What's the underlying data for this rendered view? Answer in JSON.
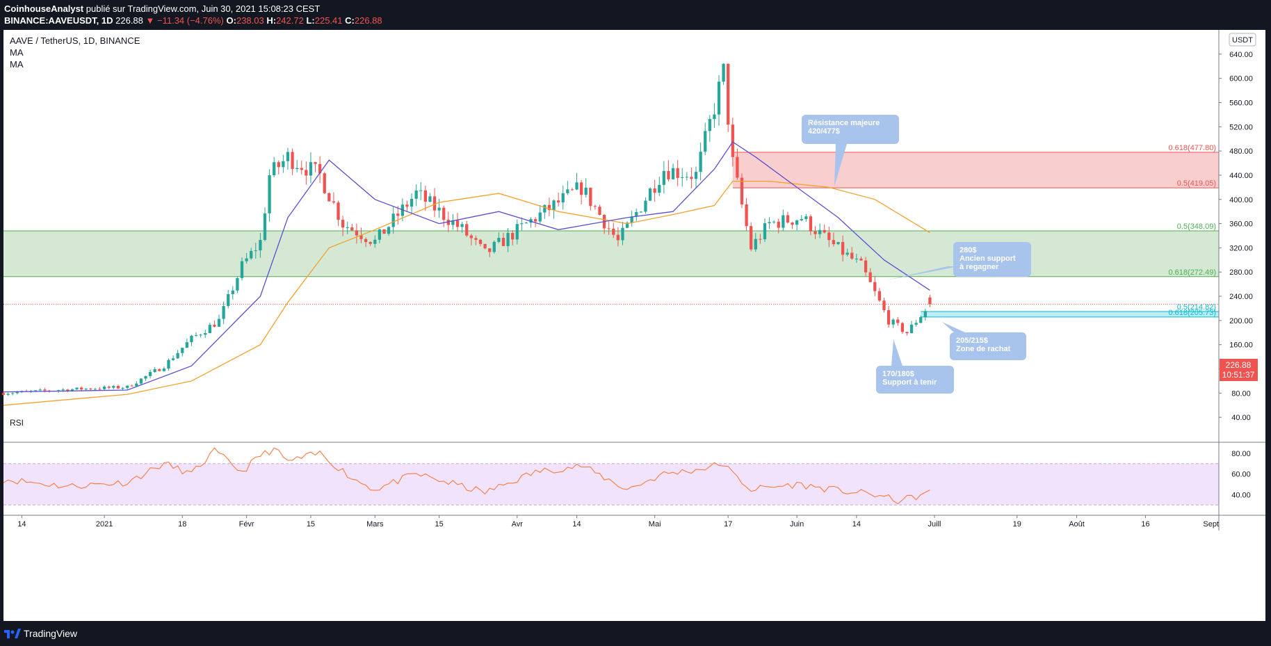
{
  "header": {
    "author": "CoinhouseAnalyst",
    "published": "publié sur TradingView.com, Juin 30, 2021 15:08:23 CEST",
    "symbol": "BINANCE:AAVEUSDT, 1D",
    "price": "226.88",
    "change": "▼ −11.34 (−4.76%)",
    "o_label": "O:",
    "o_val": "238.03",
    "h_label": "H:",
    "h_val": "242.72",
    "l_label": "L:",
    "l_val": "225.41",
    "c_label": "C:",
    "c_val": "226.88"
  },
  "legend": {
    "title": "AAVE / TetherUS, 1D, BINANCE",
    "ma1": "MA",
    "ma2": "MA",
    "currency": "USDT",
    "rsi": "RSI"
  },
  "price_tag": {
    "value": "226.88",
    "timer": "10:51:37"
  },
  "footer": {
    "brand": "TradingView"
  },
  "colors": {
    "up": "#26a69a",
    "down": "#ef5350",
    "ma_fast": "#5b4fcf",
    "ma_slow": "#f5a12a",
    "rsi": "#f57c42",
    "resistance_zone": "#f8c9c9",
    "support_zone": "#cfe6cf",
    "buy_zone": "#b9eaf6",
    "callout": "#a8c4ec"
  },
  "chart_data": [
    {
      "type": "candlestick",
      "title": "AAVE / TetherUS, 1D, BINANCE",
      "ylim": [
        0,
        680
      ],
      "yticks": [
        40,
        80,
        120,
        160,
        200,
        240,
        280,
        320,
        360,
        400,
        440,
        480,
        520,
        560,
        600,
        640
      ],
      "xticks": [
        "14",
        "2021",
        "18",
        "Févr",
        "15",
        "Mars",
        "15",
        "Avr",
        "14",
        "Mai",
        "17",
        "Juin",
        "14",
        "Juill",
        "19",
        "Août",
        "16",
        "Sept"
      ],
      "x_range": [
        "2020-12-10",
        "2021-09-01"
      ],
      "candle_anchors": {
        "dates": [
          "2020-12-10",
          "2020-12-24",
          "2021-01-06",
          "2021-01-14",
          "2021-01-20",
          "2021-01-26",
          "2021-01-31",
          "2021-02-04",
          "2021-02-06",
          "2021-02-10",
          "2021-02-17",
          "2021-02-22",
          "2021-03-01",
          "2021-03-10",
          "2021-03-20",
          "2021-03-25",
          "2021-04-05",
          "2021-04-15",
          "2021-04-23",
          "2021-05-03",
          "2021-05-10",
          "2021-05-16",
          "2021-05-18",
          "2021-05-20",
          "2021-05-22",
          "2021-05-26",
          "2021-06-02",
          "2021-06-08",
          "2021-06-15",
          "2021-06-21",
          "2021-06-25",
          "2021-06-30"
        ],
        "close": [
          80,
          86,
          90,
          125,
          170,
          200,
          290,
          330,
          440,
          470,
          440,
          360,
          330,
          410,
          350,
          310,
          370,
          420,
          330,
          450,
          440,
          610,
          460,
          390,
          320,
          360,
          370,
          330,
          290,
          200,
          180,
          226.88
        ]
      },
      "ma_fast_anchors": {
        "dates": [
          "2020-12-10",
          "2021-01-06",
          "2021-01-20",
          "2021-02-04",
          "2021-02-10",
          "2021-02-19",
          "2021-03-01",
          "2021-03-15",
          "2021-03-28",
          "2021-04-10",
          "2021-04-25",
          "2021-05-05",
          "2021-05-14",
          "2021-05-18",
          "2021-05-23",
          "2021-06-01",
          "2021-06-10",
          "2021-06-20",
          "2021-06-30"
        ],
        "values": [
          82,
          85,
          125,
          240,
          370,
          465,
          400,
          360,
          380,
          350,
          370,
          380,
          450,
          495,
          470,
          420,
          370,
          300,
          250
        ]
      },
      "ma_slow_anchors": {
        "dates": [
          "2020-12-10",
          "2021-01-06",
          "2021-01-20",
          "2021-02-04",
          "2021-02-10",
          "2021-02-19",
          "2021-03-01",
          "2021-03-15",
          "2021-03-28",
          "2021-04-10",
          "2021-04-25",
          "2021-05-05",
          "2021-05-14",
          "2021-05-18",
          "2021-05-26",
          "2021-06-08",
          "2021-06-18",
          "2021-06-30"
        ],
        "values": [
          60,
          78,
          100,
          160,
          230,
          320,
          350,
          395,
          410,
          380,
          360,
          375,
          390,
          430,
          430,
          420,
          400,
          345
        ]
      },
      "levels": [
        {
          "label": "0.618(477.80)",
          "value": 477.8,
          "color": "#ef5350"
        },
        {
          "label": "0.5(419.05)",
          "value": 419.05,
          "color": "#ef5350"
        },
        {
          "label": "0.5(348.09)",
          "value": 348.09,
          "color": "#4caf50"
        },
        {
          "label": "0.618(272.49)",
          "value": 272.49,
          "color": "#4caf50"
        },
        {
          "label": "0.5(214.82)",
          "value": 214.82,
          "color": "#00bcd4"
        },
        {
          "label": "0.618(205.73)",
          "value": 205.73,
          "color": "#00bcd4"
        }
      ],
      "zones": [
        {
          "name": "resistance",
          "from": 419.05,
          "to": 477.8,
          "start": "2021-05-18"
        },
        {
          "name": "support",
          "from": 272.49,
          "to": 348.09,
          "start": "2020-12-10"
        },
        {
          "name": "buy",
          "from": 205.73,
          "to": 214.82,
          "start": "2021-06-28"
        }
      ],
      "annotations": [
        {
          "lines": [
            "Résistance majeure",
            "420/477$"
          ]
        },
        {
          "lines": [
            "280$",
            "Ancien support",
            "à regagner"
          ]
        },
        {
          "lines": [
            "205/215$",
            "Zone de rachat"
          ]
        },
        {
          "lines": [
            "170/180$",
            "Support à tenir"
          ]
        }
      ],
      "last_price": 226.88
    },
    {
      "type": "line",
      "title": "RSI",
      "ylim": [
        20,
        90
      ],
      "yticks": [
        40,
        60,
        80
      ],
      "bands": [
        30,
        70
      ],
      "anchors": {
        "dates": [
          "2020-12-10",
          "2020-12-24",
          "2021-01-06",
          "2021-01-14",
          "2021-01-20",
          "2021-01-25",
          "2021-01-31",
          "2021-02-04",
          "2021-02-07",
          "2021-02-10",
          "2021-02-17",
          "2021-02-24",
          "2021-03-01",
          "2021-03-10",
          "2021-03-20",
          "2021-03-25",
          "2021-04-05",
          "2021-04-15",
          "2021-04-25",
          "2021-05-03",
          "2021-05-10",
          "2021-05-16",
          "2021-05-18",
          "2021-05-22",
          "2021-06-01",
          "2021-06-10",
          "2021-06-18",
          "2021-06-23",
          "2021-06-27",
          "2021-06-30"
        ],
        "values": [
          55,
          48,
          52,
          70,
          60,
          82,
          62,
          78,
          84,
          72,
          80,
          56,
          45,
          60,
          48,
          42,
          62,
          68,
          45,
          60,
          64,
          70,
          60,
          45,
          50,
          44,
          40,
          34,
          38,
          42
        ]
      }
    }
  ]
}
